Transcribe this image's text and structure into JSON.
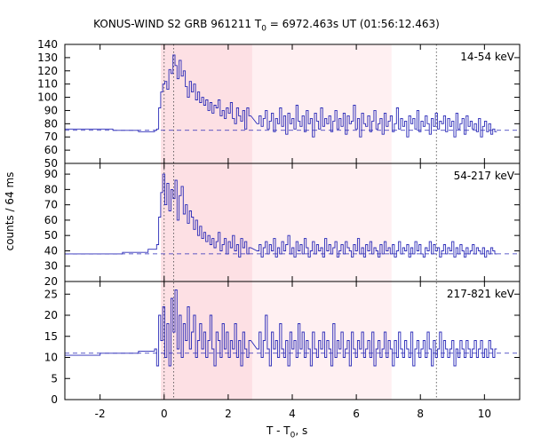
{
  "chart_data": {
    "type": "line",
    "title": "KONUS-WIND S2 GRB 961211 T0 = 6972.463s UT (01:56:12.463)",
    "title_parts": {
      "prefix": "KONUS-WIND S2 GRB 961211 T",
      "sub": "0",
      "suffix": " = 6972.463s UT (01:56:12.463)"
    },
    "xlabel": "T - T0, s",
    "xlabel_parts": {
      "prefix": "T - T",
      "sub": "0",
      "suffix": ", s"
    },
    "ylabel": "counts / 64 ms",
    "xlim": [
      -3.1,
      11.1
    ],
    "xticks": [
      -2,
      0,
      2,
      4,
      6,
      8,
      10
    ],
    "shaded_regions": [
      {
        "x": [
          -0.1,
          2.75
        ],
        "color": "#fde0e4"
      },
      {
        "x": [
          2.75,
          7.1
        ],
        "color": "#fff0f2"
      }
    ],
    "markers_dotted": [
      0.0,
      0.3,
      8.5
    ],
    "line_color": "#2b2bb8",
    "panels": [
      {
        "label": "14-54 keV",
        "ylim": [
          50,
          140
        ],
        "yticks": [
          50,
          60,
          70,
          80,
          90,
          100,
          110,
          120,
          130,
          140
        ],
        "background": 75,
        "pre_burst": [
          [
            -3.1,
            76
          ],
          [
            -1.6,
            75
          ],
          [
            -0.8,
            74
          ]
        ],
        "burst_segments": [
          [
            -0.3,
            [
              75,
              76,
              92,
              104,
              110,
              112,
              106,
              121,
              118,
              132,
              124,
              114,
              128,
              116,
              120,
              108,
              100,
              112,
              104,
              110,
              98,
              104,
              96,
              100,
              94,
              98,
              90,
              96,
              88,
              94,
              92,
              98,
              86,
              90,
              84,
              92,
              88,
              96,
              84,
              80,
              92,
              86,
              82,
              90,
              76,
              92,
              86
            ]
          ],
          [
            2.9,
            [
              80,
              86,
              78,
              84,
              90,
              76,
              82,
              88,
              74,
              84,
              80,
              92,
              78,
              86,
              72,
              88,
              80,
              84,
              76,
              94,
              82,
              78,
              86,
              74,
              90,
              80,
              84,
              70,
              88,
              82,
              76,
              92,
              78,
              84,
              80,
              86,
              74,
              82,
              90,
              76,
              84,
              78,
              88,
              72,
              86,
              80,
              82,
              94,
              76,
              84,
              70,
              88,
              80,
              78,
              86,
              74,
              82,
              90,
              76,
              80,
              84,
              72,
              88,
              78,
              82,
              86,
              74,
              80,
              92,
              76,
              84,
              78,
              82,
              70,
              86,
              80,
              84,
              76,
              90,
              74,
              82,
              78,
              86,
              80,
              72,
              84,
              78,
              88,
              76,
              82,
              80,
              86,
              74,
              84,
              78,
              82,
              70,
              88,
              76,
              80,
              84,
              72,
              86,
              78,
              82,
              76,
              80,
              74,
              84,
              70,
              78,
              82,
              74,
              80,
              72,
              76,
              74
            ]
          ]
        ]
      },
      {
        "label": "54-217 keV",
        "ylim": [
          20,
          97
        ],
        "yticks": [
          20,
          30,
          40,
          50,
          60,
          70,
          80,
          90
        ],
        "background": 38,
        "pre_burst": [
          [
            -3.1,
            38
          ],
          [
            -1.3,
            39
          ],
          [
            -0.5,
            41
          ]
        ],
        "burst_segments": [
          [
            -0.3,
            [
              41,
              44,
              62,
              78,
              90,
              70,
              84,
              66,
              80,
              74,
              86,
              60,
              76,
              82,
              64,
              70,
              58,
              66,
              62,
              54,
              60,
              50,
              56,
              48,
              52,
              46,
              50,
              44,
              48,
              42,
              46,
              52,
              40,
              44,
              48,
              38,
              46,
              42,
              50,
              40,
              44,
              36,
              48,
              42,
              46,
              38,
              42
            ]
          ],
          [
            2.9,
            [
              40,
              44,
              36,
              42,
              46,
              38,
              44,
              40,
              48,
              36,
              42,
              38,
              46,
              40,
              44,
              50,
              38,
              42,
              36,
              46,
              40,
              44,
              38,
              48,
              42,
              36,
              40,
              46,
              38,
              44,
              40,
              42,
              36,
              48,
              40,
              44,
              38,
              42,
              46,
              36,
              40,
              44,
              38,
              46,
              42,
              40,
              36,
              44,
              40,
              48,
              38,
              42,
              36,
              44,
              40,
              46,
              38,
              42,
              40,
              36,
              44,
              38,
              46,
              40,
              42,
              38,
              44,
              36,
              40,
              46,
              38,
              42,
              40,
              44,
              36,
              42,
              38,
              46,
              40,
              44,
              38,
              36,
              42,
              40,
              46,
              38,
              44,
              40,
              42,
              36,
              40,
              44,
              38,
              42,
              40,
              46,
              36,
              42,
              38,
              44,
              40,
              36,
              42,
              38,
              40,
              44,
              38,
              42,
              40,
              38,
              42,
              36,
              40,
              38,
              42,
              40,
              38
            ]
          ]
        ]
      },
      {
        "label": "217-821 keV",
        "ylim": [
          0,
          28
        ],
        "yticks": [
          0,
          5,
          10,
          15,
          20,
          25
        ],
        "background": 11,
        "pre_burst": [
          [
            -3.1,
            10.5
          ],
          [
            -2.0,
            11
          ],
          [
            -0.8,
            11.5
          ]
        ],
        "burst_segments": [
          [
            -0.3,
            [
              12,
              8,
              20,
              14,
              22,
              10,
              18,
              8,
              24,
              16,
              26,
              12,
              20,
              10,
              18,
              14,
              22,
              12,
              16,
              20,
              10,
              14,
              18,
              12,
              16,
              10,
              14,
              20,
              12,
              8,
              16,
              14,
              10,
              18,
              12,
              16,
              10,
              14,
              12,
              18,
              10,
              14,
              8,
              16,
              12,
              10,
              14
            ]
          ],
          [
            2.9,
            [
              12,
              16,
              10,
              14,
              20,
              12,
              8,
              16,
              12,
              14,
              10,
              18,
              12,
              10,
              14,
              8,
              16,
              12,
              14,
              10,
              18,
              12,
              16,
              10,
              14,
              12,
              8,
              16,
              12,
              10,
              14,
              12,
              16,
              10,
              14,
              12,
              8,
              18,
              10,
              14,
              12,
              16,
              10,
              12,
              14,
              8,
              16,
              12,
              10,
              14,
              12,
              16,
              10,
              12,
              14,
              10,
              16,
              8,
              12,
              14,
              10,
              12,
              16,
              10,
              14,
              12,
              8,
              14,
              10,
              16,
              12,
              10,
              14,
              12,
              10,
              16,
              8,
              12,
              14,
              10,
              12,
              14,
              10,
              16,
              12,
              8,
              14,
              10,
              12,
              16,
              10,
              14,
              12,
              10,
              12,
              14,
              8,
              12,
              10,
              14,
              12,
              10,
              14,
              12,
              10,
              12,
              14,
              10,
              12,
              14,
              10,
              12,
              10,
              14,
              12,
              10,
              12
            ]
          ]
        ]
      }
    ]
  }
}
